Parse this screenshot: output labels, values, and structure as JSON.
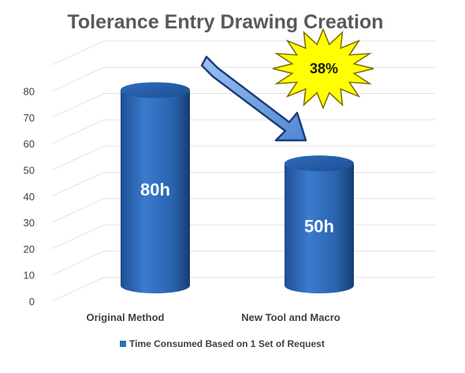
{
  "chart_data": {
    "type": "bar",
    "style": "3d-cylinder",
    "title": "Tolerance Entry Drawing Creation",
    "categories": [
      "Original Method",
      "New Tool and Macro"
    ],
    "series": [
      {
        "name": "Time Consumed Based on 1 Set of Request",
        "values": [
          80,
          50
        ],
        "color": "#2e6fc0"
      }
    ],
    "data_labels": [
      "80h",
      "50h"
    ],
    "yticks": [
      "0",
      "10",
      "20",
      "30",
      "40",
      "50",
      "60",
      "70",
      "80"
    ],
    "ylim": [
      0,
      90
    ],
    "grid": true,
    "legend": "bottom",
    "annotation": {
      "text": "38%",
      "shape": "starburst",
      "color": "#ffff00"
    },
    "arrow": {
      "direction": "down-right",
      "color": "#6fa3e8"
    }
  }
}
